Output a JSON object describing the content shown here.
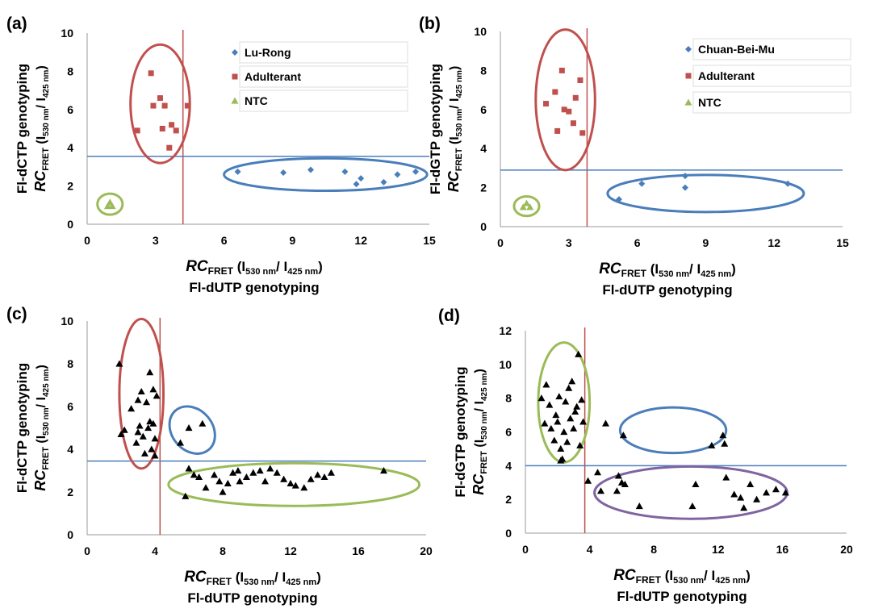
{
  "chart_data": [
    {
      "panel": "(a)",
      "type": "scatter",
      "xlabel": {
        "main": "RC",
        "sub": "FRET",
        "rest": " (I",
        "s1": "530 nm",
        "mid": "/ I",
        "s2": "425 nm",
        "end": ")",
        "line2": "Fl-dUTP genotyping"
      },
      "ylabel": {
        "line1": "Fl-dCTP genotyping",
        "main": "RC",
        "sub": "FRET",
        "rest": " (I",
        "s1": "530 nm",
        "mid": "/ I",
        "s2": "425 nm",
        "end": ")"
      },
      "xlim": [
        0,
        15
      ],
      "ylim": [
        0,
        10
      ],
      "xticks": [
        "0",
        "3",
        "6",
        "9",
        "12",
        "15"
      ],
      "yticks": [
        "0",
        "2",
        "4",
        "6",
        "8",
        "10"
      ],
      "series": [
        {
          "name": "Lu-Rong",
          "marker": "diamond",
          "color": "#4a7ebb",
          "points": [
            [
              6.6,
              2.75
            ],
            [
              8.6,
              2.7
            ],
            [
              9.8,
              2.85
            ],
            [
              11.3,
              2.75
            ],
            [
              11.8,
              2.1
            ],
            [
              12.0,
              2.4
            ],
            [
              13.0,
              2.2
            ],
            [
              13.6,
              2.6
            ],
            [
              14.4,
              2.75
            ]
          ]
        },
        {
          "name": "Adulterant",
          "marker": "square",
          "color": "#c0504d",
          "points": [
            [
              2.2,
              4.9
            ],
            [
              2.8,
              7.9
            ],
            [
              2.9,
              6.2
            ],
            [
              3.2,
              6.6
            ],
            [
              3.3,
              5.0
            ],
            [
              3.4,
              6.2
            ],
            [
              3.6,
              4.0
            ],
            [
              3.7,
              5.2
            ],
            [
              3.9,
              4.9
            ],
            [
              4.4,
              6.2
            ]
          ]
        },
        {
          "name": "NTC",
          "marker": "triangle",
          "color": "#9bbb59",
          "points": [
            [
              0.9,
              0.95
            ],
            [
              1.0,
              1.15
            ],
            [
              1.1,
              0.95
            ]
          ]
        }
      ],
      "vline": 4.2,
      "hline": 3.55,
      "ellipses": [
        {
          "color": "#c0504d",
          "cx": 3.2,
          "cy": 6.3,
          "rx": 1.3,
          "ry": 3.1
        },
        {
          "color": "#4a7ebb",
          "cx": 10.45,
          "cy": 2.6,
          "rx": 4.45,
          "ry": 0.85
        },
        {
          "color": "#9bbb59",
          "cx": 1.0,
          "cy": 1.05,
          "rx": 0.55,
          "ry": 0.55
        }
      ],
      "legend": [
        "Lu-Rong",
        "Adulterant",
        "NTC"
      ]
    },
    {
      "panel": "(b)",
      "type": "scatter",
      "xlabel": {
        "main": "RC",
        "sub": "FRET",
        "rest": " (I",
        "s1": "530 nm",
        "mid": "/ I",
        "s2": "425 nm",
        "end": ")",
        "line2": "Fl-dUTP genotyping"
      },
      "ylabel": {
        "line1": "Fl-dGTP genotyping",
        "main": "RC",
        "sub": "FRET",
        "rest": " (I",
        "s1": "530 nm",
        "mid": "/ I",
        "s2": "425 nm",
        "end": ")"
      },
      "xlim": [
        0,
        15
      ],
      "ylim": [
        0,
        10
      ],
      "xticks": [
        "0",
        "3",
        "6",
        "9",
        "12",
        "15"
      ],
      "yticks": [
        "0",
        "2",
        "4",
        "6",
        "8",
        "10"
      ],
      "series": [
        {
          "name": "Chuan-Bei-Mu",
          "marker": "diamond",
          "color": "#4a7ebb",
          "points": [
            [
              5.2,
              1.4
            ],
            [
              6.2,
              2.2
            ],
            [
              8.1,
              2.6
            ],
            [
              8.1,
              2.0
            ],
            [
              12.6,
              2.2
            ]
          ]
        },
        {
          "name": "Adulterant",
          "marker": "square",
          "color": "#c0504d",
          "points": [
            [
              2.0,
              6.3
            ],
            [
              2.4,
              6.9
            ],
            [
              2.5,
              4.9
            ],
            [
              2.7,
              8.0
            ],
            [
              2.8,
              6.0
            ],
            [
              3.0,
              5.9
            ],
            [
              3.2,
              5.3
            ],
            [
              3.3,
              6.6
            ],
            [
              3.5,
              7.5
            ],
            [
              3.6,
              4.8
            ]
          ]
        },
        {
          "name": "NTC",
          "marker": "triangle",
          "color": "#9bbb59",
          "points": [
            [
              1.0,
              1.0
            ],
            [
              1.15,
              1.2
            ],
            [
              1.3,
              1.0
            ]
          ]
        }
      ],
      "vline": 3.8,
      "hline": 2.9,
      "ellipses": [
        {
          "color": "#c0504d",
          "cx": 2.85,
          "cy": 6.5,
          "rx": 1.3,
          "ry": 3.6
        },
        {
          "color": "#4a7ebb",
          "cx": 9.0,
          "cy": 1.7,
          "rx": 4.3,
          "ry": 0.95
        },
        {
          "color": "#9bbb59",
          "cx": 1.15,
          "cy": 1.05,
          "rx": 0.55,
          "ry": 0.5
        }
      ],
      "legend": [
        "Chuan-Bei-Mu",
        "Adulterant",
        "NTC"
      ]
    },
    {
      "panel": "(c)",
      "type": "scatter",
      "xlabel": {
        "main": "RC",
        "sub": "FRET",
        "rest": " (I",
        "s1": "530 nm",
        "mid": "/ I",
        "s2": "425 nm",
        "end": ")",
        "line2": "Fl-dUTP genotyping"
      },
      "ylabel": {
        "line1": "Fl-dCTP genotyping",
        "main": "RC",
        "sub": "FRET",
        "rest": " (I",
        "s1": "530 nm",
        "mid": "/ I",
        "s2": "425 nm",
        "end": ")"
      },
      "xlim": [
        0,
        20
      ],
      "ylim": [
        0,
        10
      ],
      "xticks": [
        "0",
        "4",
        "8",
        "12",
        "16",
        "20"
      ],
      "yticks": [
        "0",
        "2",
        "4",
        "6",
        "8",
        "10"
      ],
      "series": [
        {
          "name": "",
          "marker": "triangle",
          "color": "#000000",
          "points": [
            [
              1.9,
              8.0
            ],
            [
              2.0,
              4.7
            ],
            [
              2.2,
              4.9
            ],
            [
              2.6,
              5.9
            ],
            [
              2.9,
              4.3
            ],
            [
              3.0,
              6.3
            ],
            [
              3.0,
              4.8
            ],
            [
              3.1,
              5.1
            ],
            [
              3.2,
              6.7
            ],
            [
              3.3,
              4.6
            ],
            [
              3.4,
              3.8
            ],
            [
              3.5,
              6.2
            ],
            [
              3.6,
              5.0
            ],
            [
              3.7,
              5.3
            ],
            [
              3.7,
              7.6
            ],
            [
              3.8,
              4.0
            ],
            [
              3.9,
              6.8
            ],
            [
              3.9,
              5.2
            ],
            [
              4.0,
              3.7
            ],
            [
              4.1,
              6.5
            ],
            [
              4.0,
              4.5
            ],
            [
              5.5,
              4.3
            ],
            [
              6.0,
              5.0
            ],
            [
              6.8,
              5.2
            ],
            [
              5.8,
              1.8
            ],
            [
              6.0,
              3.1
            ],
            [
              6.3,
              2.8
            ],
            [
              6.6,
              2.7
            ],
            [
              7.0,
              2.2
            ],
            [
              7.5,
              2.8
            ],
            [
              7.8,
              2.5
            ],
            [
              8.0,
              2.0
            ],
            [
              8.3,
              2.4
            ],
            [
              8.6,
              2.9
            ],
            [
              8.9,
              3.0
            ],
            [
              9.0,
              2.5
            ],
            [
              9.4,
              2.7
            ],
            [
              9.8,
              2.9
            ],
            [
              10.2,
              3.0
            ],
            [
              10.5,
              2.5
            ],
            [
              10.8,
              3.1
            ],
            [
              11.2,
              2.9
            ],
            [
              11.6,
              2.6
            ],
            [
              12.0,
              2.4
            ],
            [
              12.3,
              2.3
            ],
            [
              12.8,
              2.2
            ],
            [
              13.2,
              2.6
            ],
            [
              13.6,
              2.8
            ],
            [
              14.0,
              2.7
            ],
            [
              14.4,
              2.9
            ],
            [
              17.5,
              3.0
            ]
          ]
        }
      ],
      "vline": 4.3,
      "hline": 3.45,
      "ellipses": [
        {
          "color": "#c0504d",
          "cx": 3.2,
          "cy": 6.6,
          "rx": 1.3,
          "ry": 3.5
        },
        {
          "color": "#4a7ebb",
          "cx": 6.2,
          "cy": 4.9,
          "rx": 1.2,
          "ry": 1.2,
          "rotate": -40
        },
        {
          "color": "#9bbb59",
          "cx": 12.2,
          "cy": 2.35,
          "rx": 7.4,
          "ry": 1.0
        }
      ],
      "legend": []
    },
    {
      "panel": "(d)",
      "type": "scatter",
      "xlabel": {
        "main": "RC",
        "sub": "FRET",
        "rest": " (I",
        "s1": "530 nm",
        "mid": "/ I",
        "s2": "425 nm",
        "end": ")",
        "line2": "Fl-dUTP genotyping"
      },
      "ylabel": {
        "line1": "Fl-dGTP genotyping",
        "main": "RC",
        "sub": "FRET",
        "rest": " (I",
        "s1": "530 nm",
        "mid": "/ I",
        "s2": "425 nm",
        "end": ")"
      },
      "xlim": [
        0,
        20
      ],
      "ylim": [
        0,
        12
      ],
      "xticks": [
        "0",
        "4",
        "8",
        "12",
        "16",
        "20"
      ],
      "yticks": [
        "0",
        "2",
        "4",
        "6",
        "8",
        "10",
        "12"
      ],
      "series": [
        {
          "name": "",
          "marker": "triangle",
          "color": "#000000",
          "points": [
            [
              1.0,
              8.0
            ],
            [
              1.2,
              6.5
            ],
            [
              1.3,
              8.8
            ],
            [
              1.5,
              7.6
            ],
            [
              1.6,
              6.2
            ],
            [
              1.8,
              5.5
            ],
            [
              1.9,
              7.0
            ],
            [
              2.0,
              6.6
            ],
            [
              2.1,
              8.1
            ],
            [
              2.2,
              5.0
            ],
            [
              2.3,
              4.4
            ],
            [
              2.4,
              6.0
            ],
            [
              2.5,
              7.8
            ],
            [
              2.6,
              5.4
            ],
            [
              2.7,
              8.6
            ],
            [
              2.8,
              6.8
            ],
            [
              2.9,
              9.0
            ],
            [
              3.0,
              6.2
            ],
            [
              3.1,
              7.2
            ],
            [
              3.2,
              7.5
            ],
            [
              3.3,
              10.6
            ],
            [
              3.4,
              5.2
            ],
            [
              3.5,
              7.9
            ],
            [
              3.6,
              6.6
            ],
            [
              2.2,
              4.3
            ],
            [
              5.0,
              6.5
            ],
            [
              6.1,
              5.8
            ],
            [
              11.6,
              5.2
            ],
            [
              12.3,
              5.8
            ],
            [
              12.4,
              5.3
            ],
            [
              3.9,
              3.1
            ],
            [
              4.5,
              3.6
            ],
            [
              4.7,
              2.5
            ],
            [
              5.7,
              2.5
            ],
            [
              5.8,
              3.4
            ],
            [
              6.0,
              3.0
            ],
            [
              6.2,
              2.9
            ],
            [
              7.1,
              1.6
            ],
            [
              10.4,
              1.6
            ],
            [
              10.6,
              2.9
            ],
            [
              12.5,
              3.3
            ],
            [
              13.0,
              2.3
            ],
            [
              13.4,
              2.1
            ],
            [
              13.6,
              1.5
            ],
            [
              14.0,
              2.9
            ],
            [
              14.4,
              2.0
            ],
            [
              15.0,
              2.4
            ],
            [
              15.6,
              2.6
            ],
            [
              16.2,
              2.4
            ]
          ]
        }
      ],
      "vline": 3.7,
      "hline": 4.0,
      "ellipses": [
        {
          "color": "#9bbb59",
          "cx": 2.4,
          "cy": 7.75,
          "rx": 1.6,
          "ry": 3.55
        },
        {
          "color": "#4a7ebb",
          "cx": 9.2,
          "cy": 6.1,
          "rx": 3.3,
          "ry": 1.35
        },
        {
          "color": "#8064a2",
          "cx": 10.3,
          "cy": 2.4,
          "rx": 6.0,
          "ry": 1.55
        }
      ],
      "legend": []
    }
  ]
}
